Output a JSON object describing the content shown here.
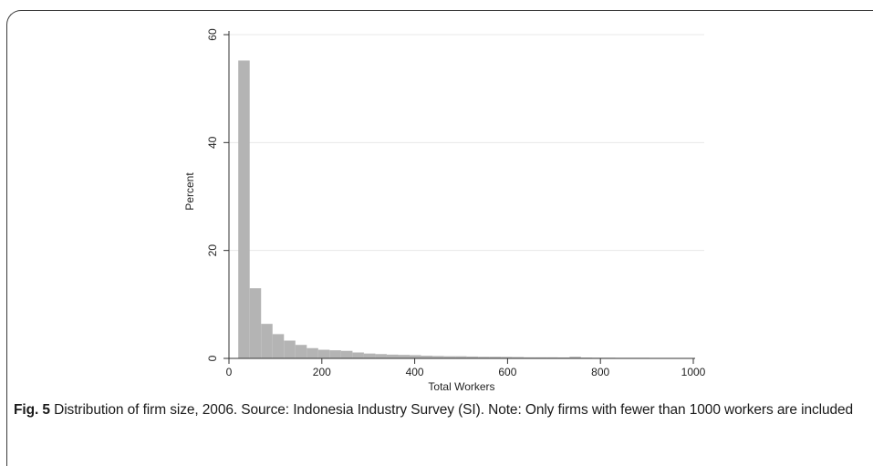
{
  "chart_data": {
    "type": "bar",
    "subtype": "histogram",
    "xlabel": "Total Workers",
    "ylabel": "Percent",
    "xlim": [
      0,
      1000
    ],
    "ylim": [
      0,
      60
    ],
    "x_ticks": [
      0,
      200,
      400,
      600,
      800,
      1000
    ],
    "y_ticks": [
      0,
      20,
      40,
      60
    ],
    "grid": "horizontal",
    "bar_color": "#b4b4b4",
    "bin_width": 24.6,
    "bin_start": 20,
    "values": [
      55.2,
      13.0,
      6.4,
      4.5,
      3.3,
      2.5,
      1.9,
      1.6,
      1.5,
      1.4,
      1.1,
      0.9,
      0.8,
      0.7,
      0.65,
      0.6,
      0.5,
      0.45,
      0.4,
      0.4,
      0.35,
      0.3,
      0.3,
      0.28,
      0.25,
      0.2,
      0.2,
      0.2,
      0.18,
      0.3,
      0.15,
      0.12,
      0.12,
      0.1,
      0.1,
      0.1,
      0.08,
      0.08,
      0.08,
      0.08
    ]
  },
  "caption": {
    "label": "Fig. 5",
    "text": "Distribution of firm size, 2006. Source: Indonesia Industry Survey (SI). Note: Only firms with fewer than 1000 workers are included"
  }
}
